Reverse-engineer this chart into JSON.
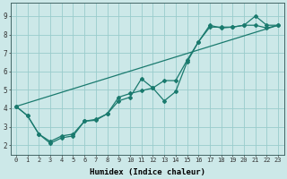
{
  "title": "",
  "xlabel": "Humidex (Indice chaleur)",
  "bg_color": "#cce8e8",
  "grid_color": "#99cccc",
  "line_color": "#1a7a6e",
  "xlim": [
    -0.5,
    23.5
  ],
  "ylim": [
    1.5,
    9.7
  ],
  "line1_x": [
    0,
    1,
    2,
    3,
    4,
    5,
    6,
    7,
    8,
    9,
    10,
    11,
    12,
    13,
    14,
    15,
    16,
    17,
    18,
    19,
    20,
    21,
    22,
    23
  ],
  "line1_y": [
    4.1,
    3.6,
    2.6,
    2.1,
    2.4,
    2.5,
    3.3,
    3.4,
    3.7,
    4.4,
    4.6,
    5.6,
    5.1,
    4.4,
    4.9,
    6.5,
    7.6,
    8.4,
    8.4,
    8.4,
    8.5,
    9.0,
    8.5,
    8.5
  ],
  "line2_x": [
    0,
    1,
    2,
    3,
    4,
    5,
    6,
    7,
    8,
    9,
    10,
    11,
    12,
    13,
    14,
    15,
    16,
    17,
    18,
    19,
    20,
    21,
    22,
    23
  ],
  "line2_y": [
    4.1,
    3.6,
    2.6,
    2.2,
    2.5,
    2.6,
    3.3,
    3.35,
    3.7,
    4.6,
    4.8,
    4.95,
    5.1,
    5.5,
    5.5,
    6.6,
    7.6,
    8.5,
    8.35,
    8.4,
    8.5,
    8.5,
    8.35,
    8.5
  ],
  "line3_x": [
    0,
    23
  ],
  "line3_y": [
    4.1,
    8.5
  ],
  "xtick_fontsize": 5.0,
  "ytick_fontsize": 5.5,
  "xlabel_fontsize": 6.5,
  "marker_size": 2.0,
  "lw": 0.9
}
